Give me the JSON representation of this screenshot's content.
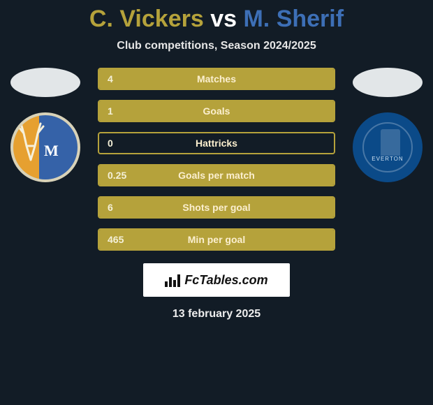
{
  "title": {
    "player1": "C. Vickers",
    "vs": "vs",
    "player2": "M. Sherif"
  },
  "subtitle": "Club competitions, Season 2024/2025",
  "colors": {
    "player1_accent": "#b5a23b",
    "player2_accent": "#3d6fb6",
    "bar_border": "#b5a23b",
    "bar_fill_left": "#b5a23b",
    "bar_label": "#fbefcf",
    "bar_value": "#f4f0d8",
    "background": "#121c26"
  },
  "teams": {
    "left": {
      "name": "Mansfield Town",
      "badge_style": "mans"
    },
    "right": {
      "name": "Everton",
      "badge_style": "eve"
    }
  },
  "stats": [
    {
      "label": "Matches",
      "left_value": "4",
      "left_pct": 100,
      "right_value": "",
      "right_pct": 0
    },
    {
      "label": "Goals",
      "left_value": "1",
      "left_pct": 100,
      "right_value": "",
      "right_pct": 0
    },
    {
      "label": "Hattricks",
      "left_value": "0",
      "left_pct": 0,
      "right_value": "",
      "right_pct": 0
    },
    {
      "label": "Goals per match",
      "left_value": "0.25",
      "left_pct": 100,
      "right_value": "",
      "right_pct": 0
    },
    {
      "label": "Shots per goal",
      "left_value": "6",
      "left_pct": 100,
      "right_value": "",
      "right_pct": 0
    },
    {
      "label": "Min per goal",
      "left_value": "465",
      "left_pct": 100,
      "right_value": "",
      "right_pct": 0
    }
  ],
  "brand": "FcTables.com",
  "date": "13 february 2025"
}
